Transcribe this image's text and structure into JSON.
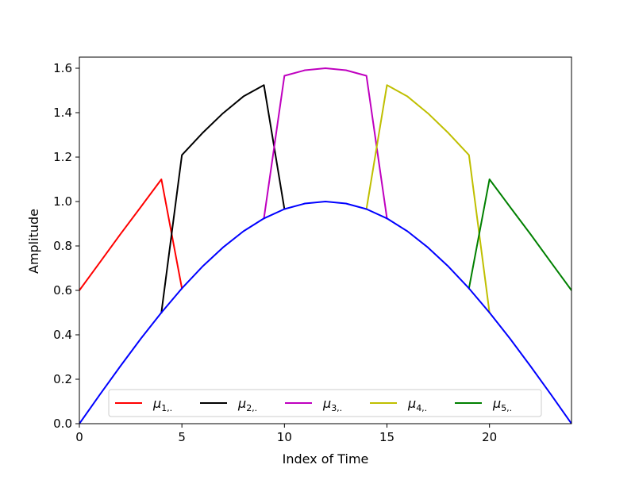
{
  "chart_data": {
    "type": "line",
    "title": "",
    "xlabel": "Index of Time",
    "ylabel": "Amplitude",
    "xlim": [
      0,
      24
    ],
    "ylim": [
      0,
      1.65
    ],
    "xticks": [
      0,
      5,
      10,
      15,
      20
    ],
    "yticks": [
      0.0,
      0.2,
      0.4,
      0.6,
      0.8,
      1.0,
      1.2,
      1.4,
      1.6
    ],
    "xtick_labels": [
      "0",
      "5",
      "10",
      "15",
      "20"
    ],
    "ytick_labels": [
      "0.0",
      "0.2",
      "0.4",
      "0.6",
      "0.8",
      "1.0",
      "1.2",
      "1.4",
      "1.6"
    ],
    "grid": false,
    "legend_position": "lower-center",
    "legend_columns": 5,
    "series": [
      {
        "legend_sym": "μ",
        "legend_sub": "1,.",
        "color": "#ff0000",
        "x": [
          0,
          1,
          2,
          3,
          4,
          5
        ],
        "y": [
          0.6,
          0.726,
          0.853,
          0.976,
          1.1,
          0.609
        ]
      },
      {
        "legend_sym": "μ",
        "legend_sub": "2,.",
        "color": "#000000",
        "x": [
          4,
          5,
          6,
          7,
          8,
          9,
          10
        ],
        "y": [
          0.5,
          1.209,
          1.308,
          1.397,
          1.473,
          1.524,
          0.966
        ]
      },
      {
        "legend_sym": "μ",
        "legend_sub": "3,.",
        "color": "#bf00bf",
        "x": [
          9,
          10,
          11,
          12,
          13,
          14,
          15
        ],
        "y": [
          0.924,
          1.566,
          1.591,
          1.6,
          1.591,
          1.566,
          0.924
        ]
      },
      {
        "legend_sym": "μ",
        "legend_sub": "4,.",
        "color": "#bfbf00",
        "x": [
          14,
          15,
          16,
          17,
          18,
          19,
          20
        ],
        "y": [
          0.966,
          1.524,
          1.473,
          1.397,
          1.308,
          1.209,
          0.5
        ]
      },
      {
        "legend_sym": "μ",
        "legend_sub": "5,.",
        "color": "#008000",
        "x": [
          19,
          20,
          21,
          22,
          23,
          24
        ],
        "y": [
          0.609,
          1.1,
          0.976,
          0.853,
          0.726,
          0.6
        ]
      },
      {
        "legend_sym": "",
        "legend_sub": "",
        "color": "#0000ff",
        "x": [
          0,
          1,
          2,
          3,
          4,
          5,
          6,
          7,
          8,
          9,
          10,
          11,
          12,
          13,
          14,
          15,
          16,
          17,
          18,
          19,
          20,
          21,
          22,
          23,
          24
        ],
        "y": [
          0.0,
          0.131,
          0.259,
          0.383,
          0.5,
          0.609,
          0.707,
          0.793,
          0.866,
          0.924,
          0.966,
          0.991,
          1.0,
          0.991,
          0.966,
          0.924,
          0.866,
          0.793,
          0.707,
          0.609,
          0.5,
          0.383,
          0.259,
          0.131,
          0.0
        ]
      }
    ]
  }
}
